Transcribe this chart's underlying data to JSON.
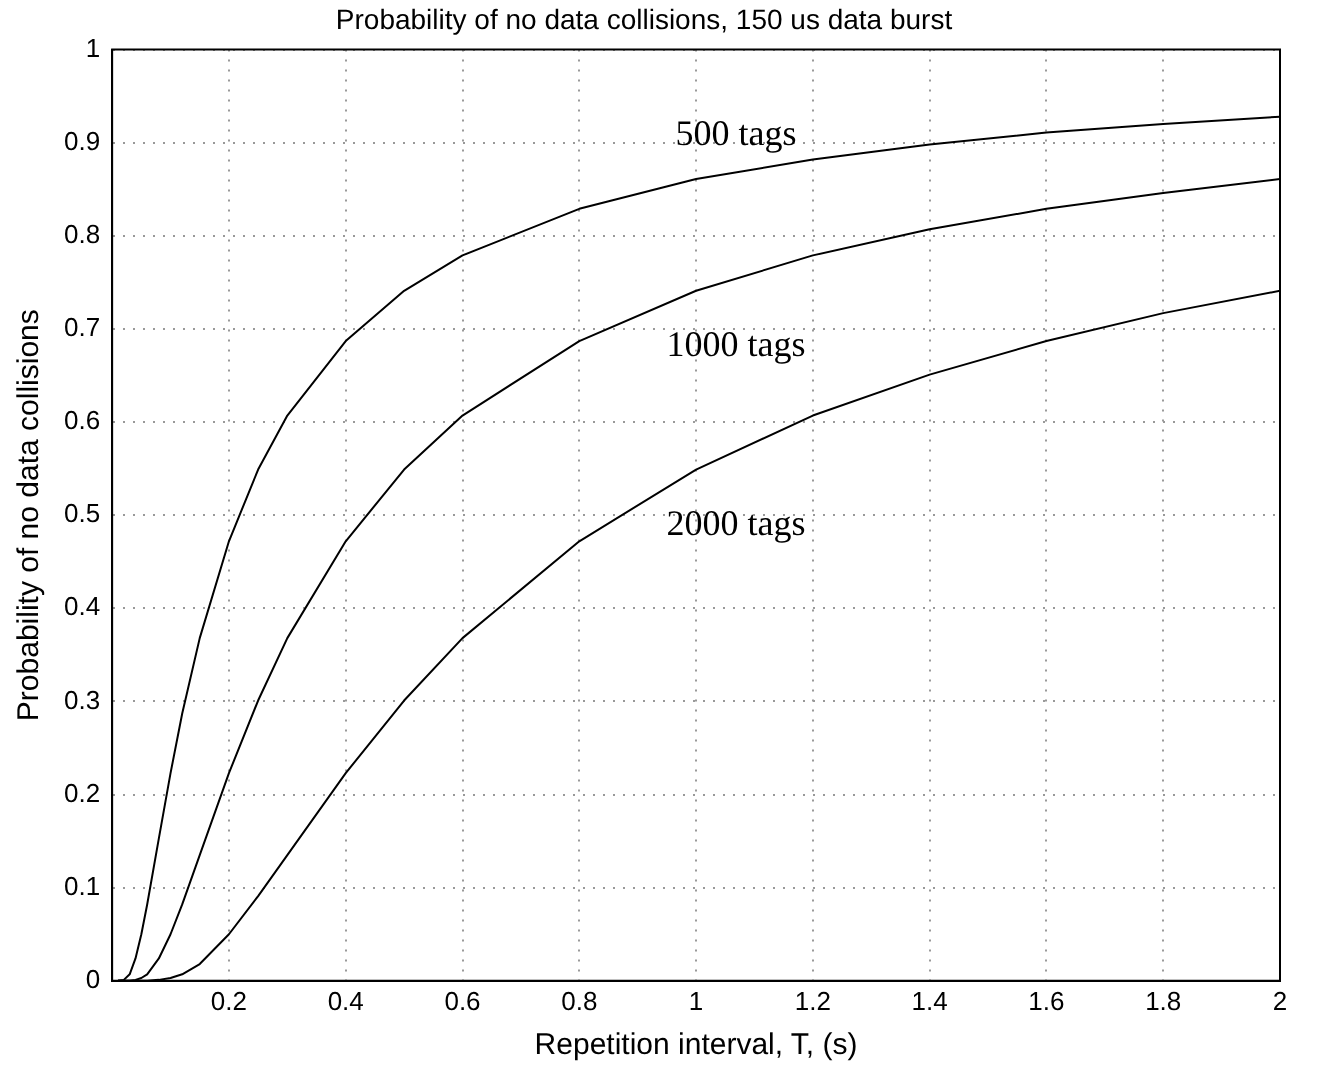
{
  "chart_data": {
    "type": "line",
    "title": "Probability of no data collisions, 150 us data burst",
    "xlabel": "Repetition interval, T, (s)",
    "ylabel": "Probability of no data collisions",
    "x": [
      0.01,
      0.02,
      0.03,
      0.04,
      0.05,
      0.06,
      0.08,
      0.1,
      0.12,
      0.15,
      0.2,
      0.25,
      0.3,
      0.4,
      0.5,
      0.6,
      0.8,
      1,
      1.2,
      1.4,
      1.6,
      1.8,
      2
    ],
    "series": [
      {
        "name": "500 tags",
        "color": "#000000",
        "values": [
          0,
          0.001,
          0.007,
          0.024,
          0.05,
          0.082,
          0.153,
          0.223,
          0.287,
          0.368,
          0.472,
          0.549,
          0.607,
          0.687,
          0.741,
          0.779,
          0.829,
          0.861,
          0.882,
          0.898,
          0.911,
          0.92,
          0.928
        ]
      },
      {
        "name": "1000 tags",
        "color": "#000000",
        "values": [
          0,
          0,
          0,
          0.001,
          0.003,
          0.007,
          0.024,
          0.05,
          0.082,
          0.135,
          0.223,
          0.301,
          0.368,
          0.472,
          0.549,
          0.607,
          0.687,
          0.741,
          0.779,
          0.807,
          0.829,
          0.846,
          0.861
        ]
      },
      {
        "name": "2000 tags",
        "color": "#000000",
        "values": [
          0,
          0,
          0,
          0,
          0,
          0,
          0.001,
          0.003,
          0.007,
          0.018,
          0.05,
          0.091,
          0.135,
          0.223,
          0.301,
          0.368,
          0.472,
          0.549,
          0.607,
          0.651,
          0.687,
          0.717,
          0.741
        ]
      }
    ],
    "xlim": [
      0,
      2
    ],
    "xticks": [
      {
        "value": 0,
        "label": null
      },
      0.2,
      0.4,
      0.6,
      0.8,
      1,
      1.2,
      1.4,
      1.6,
      1.8,
      2
    ],
    "ylim": [
      0,
      1
    ],
    "yticks": [
      0,
      0.1,
      0.2,
      0.3,
      0.4,
      0.5,
      0.6,
      0.7,
      0.8,
      0.9,
      1
    ],
    "grid": true,
    "legend": false,
    "marker": "none",
    "line_style": "solid"
  }
}
